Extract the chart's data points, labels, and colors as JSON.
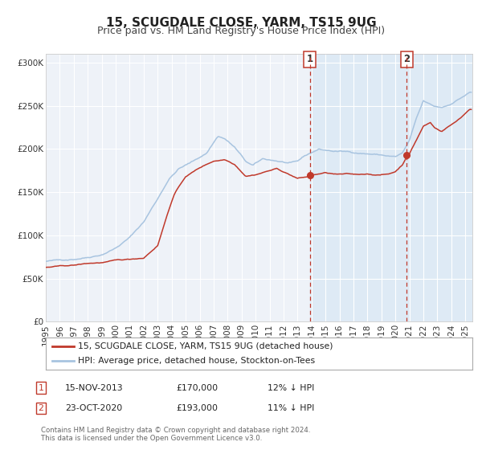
{
  "title": "15, SCUGDALE CLOSE, YARM, TS15 9UG",
  "subtitle": "Price paid vs. HM Land Registry's House Price Index (HPI)",
  "ylim": [
    0,
    310000
  ],
  "xlim_start": 1995.0,
  "xlim_end": 2025.5,
  "yticks": [
    0,
    50000,
    100000,
    150000,
    200000,
    250000,
    300000
  ],
  "ytick_labels": [
    "£0",
    "£50K",
    "£100K",
    "£150K",
    "£200K",
    "£250K",
    "£300K"
  ],
  "xtick_years": [
    1995,
    1996,
    1997,
    1998,
    1999,
    2000,
    2001,
    2002,
    2003,
    2004,
    2005,
    2006,
    2007,
    2008,
    2009,
    2010,
    2011,
    2012,
    2013,
    2014,
    2015,
    2016,
    2017,
    2018,
    2019,
    2020,
    2021,
    2022,
    2023,
    2024,
    2025
  ],
  "hpi_color": "#a8c4e0",
  "price_color": "#c0392b",
  "marker1_x": 2013.87,
  "marker1_y": 170000,
  "marker2_x": 2020.81,
  "marker2_y": 193000,
  "vline1_x": 2013.87,
  "vline2_x": 2020.81,
  "shade_x1": 2013.87,
  "shade_x2": 2025.5,
  "legend_label1": "15, SCUGDALE CLOSE, YARM, TS15 9UG (detached house)",
  "legend_label2": "HPI: Average price, detached house, Stockton-on-Tees",
  "ann1_label": "1",
  "ann2_label": "2",
  "ann1_date": "15-NOV-2013",
  "ann1_price": "£170,000",
  "ann1_hpi": "12% ↓ HPI",
  "ann2_date": "23-OCT-2020",
  "ann2_price": "£193,000",
  "ann2_hpi": "11% ↓ HPI",
  "footer1": "Contains HM Land Registry data © Crown copyright and database right 2024.",
  "footer2": "This data is licensed under the Open Government Licence v3.0.",
  "bg_color": "#ffffff",
  "plot_bg_color": "#eef2f8",
  "grid_color": "#ffffff",
  "title_fontsize": 11,
  "subtitle_fontsize": 9,
  "tick_fontsize": 7.5
}
